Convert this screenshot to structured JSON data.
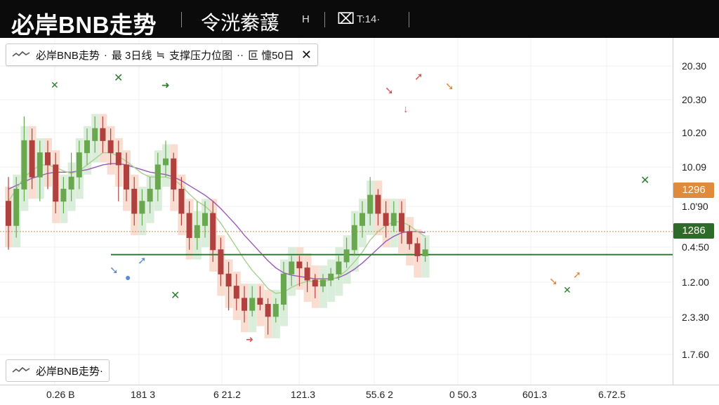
{
  "header": {
    "title": "必岸BNB走势",
    "item1": "令洸絭蘐",
    "item1_suffix": "H",
    "item2_icon": "⌧",
    "item2_text": "T:14·"
  },
  "legend": {
    "symbol": "必岸BNB走势",
    "sep1": "·",
    "interval": "最 3日线",
    "arrow": "≒",
    "indicator": "支撑压力位图",
    "sep2": "··",
    "extra": "叵 懥",
    "period": "50日",
    "close_icon": "✕"
  },
  "legend_bottom": {
    "symbol": "必岸BNB走势",
    "dot": "·"
  },
  "y_axis": {
    "ticks": [
      "20.30",
      "20.30",
      "10.20",
      "10.09",
      "1.0'90",
      "0.4:50",
      "1.2.00",
      "2.3.30",
      "1.7.60"
    ],
    "tag_orange": "1296",
    "tag_green": "1286"
  },
  "x_axis": {
    "ticks": [
      "0.26 B",
      "181 3",
      "6 21.2",
      "121.3",
      "55.6 2",
      "0 50.3",
      "601.3",
      "6.72.5"
    ]
  },
  "colors": {
    "up": "#6aa84f",
    "down": "#b0413e",
    "resistance_line": "#d08a5a",
    "support_line": "#2e7d32",
    "orange_tag": "#e08a3c",
    "green_tag": "#2e6b2a"
  },
  "chart_data": {
    "type": "candlestick",
    "candles": [
      [
        12,
        10,
        14,
        8
      ],
      [
        10,
        13,
        14,
        9
      ],
      [
        13,
        17,
        19,
        12
      ],
      [
        17,
        14,
        18,
        13
      ],
      [
        14,
        16,
        17,
        12
      ],
      [
        16,
        15,
        17,
        13
      ],
      [
        15,
        12,
        16,
        11
      ],
      [
        12,
        13,
        14,
        11
      ],
      [
        13,
        14,
        16,
        12
      ],
      [
        14,
        16,
        17,
        13
      ],
      [
        16,
        17,
        18,
        15
      ],
      [
        17,
        18,
        19,
        16
      ],
      [
        18,
        17,
        19,
        16
      ],
      [
        17,
        16,
        18,
        15
      ],
      [
        16,
        15,
        17,
        12
      ],
      [
        15,
        13,
        16,
        12
      ],
      [
        13,
        11,
        14,
        10
      ],
      [
        11,
        12,
        13,
        10
      ],
      [
        12,
        13,
        14,
        11
      ],
      [
        13,
        15,
        16,
        12
      ],
      [
        15,
        15.5,
        17,
        14
      ],
      [
        15.5,
        13,
        16,
        12
      ],
      [
        13,
        11,
        14,
        10
      ],
      [
        11,
        9,
        12,
        8
      ],
      [
        9,
        10,
        12,
        8
      ],
      [
        10,
        11,
        12,
        9
      ],
      [
        11,
        8,
        12,
        7
      ],
      [
        8,
        6,
        9,
        5
      ],
      [
        6,
        5,
        7,
        3
      ],
      [
        5,
        4,
        6,
        3
      ],
      [
        4,
        3,
        5,
        2
      ],
      [
        3,
        4,
        5,
        2.5
      ],
      [
        4,
        3.5,
        5,
        3
      ],
      [
        3.5,
        2.5,
        4,
        1
      ],
      [
        2.5,
        3.5,
        4,
        2
      ],
      [
        3.5,
        6,
        7,
        3
      ],
      [
        6,
        7,
        7.5,
        5
      ],
      [
        7,
        6.5,
        7.5,
        5
      ],
      [
        6.5,
        5.5,
        7,
        4.5
      ],
      [
        5.5,
        5,
        6,
        4
      ],
      [
        5,
        5.5,
        6,
        4.5
      ],
      [
        5.5,
        6,
        6.5,
        5
      ],
      [
        6,
        7,
        7.5,
        5.5
      ],
      [
        7,
        8,
        9,
        6.5
      ],
      [
        8,
        10,
        11,
        7.5
      ],
      [
        10,
        11,
        12,
        9
      ],
      [
        11,
        12.5,
        14,
        10
      ],
      [
        12.5,
        11,
        13,
        10
      ],
      [
        11,
        10,
        12,
        9
      ],
      [
        10,
        11,
        12,
        9.5
      ],
      [
        11,
        9.5,
        12,
        8.5
      ],
      [
        9.5,
        8.5,
        10,
        8
      ],
      [
        8.5,
        7.5,
        9,
        7
      ],
      [
        7.5,
        8,
        9,
        7
      ]
    ],
    "ma_short": [
      12,
      13,
      14,
      14.5,
      15,
      15,
      14.8,
      14.5,
      14.3,
      14.5,
      15,
      15.5,
      16,
      16,
      15.7,
      15.3,
      14.8,
      14.3,
      14,
      14,
      14,
      13.8,
      13.3,
      12.6,
      12,
      11.6,
      11,
      10.2,
      9.2,
      8.2,
      7.2,
      6.3,
      5.6,
      4.8,
      4.4,
      4.5,
      4.9,
      5.2,
      5.4,
      5.4,
      5.4,
      5.5,
      5.8,
      6.3,
      7,
      7.8,
      8.8,
      9.5,
      10,
      10.3,
      10.3,
      10,
      9.5,
      9.1
    ],
    "ma_long": [
      13,
      13.3,
      13.6,
      13.9,
      14.1,
      14.3,
      14.4,
      14.4,
      14.4,
      14.5,
      14.6,
      14.8,
      15,
      15.1,
      15.1,
      15,
      14.8,
      14.6,
      14.4,
      14.3,
      14.2,
      14,
      13.7,
      13.3,
      12.9,
      12.5,
      12,
      11.4,
      10.7,
      10,
      9.2,
      8.5,
      7.8,
      7.1,
      6.5,
      6.1,
      5.9,
      5.8,
      5.7,
      5.6,
      5.6,
      5.6,
      5.7,
      6,
      6.4,
      6.9,
      7.5,
      8.1,
      8.7,
      9.1,
      9.4,
      9.5,
      9.5,
      9.4
    ],
    "resistance": 9.5,
    "support": 7.6
  }
}
